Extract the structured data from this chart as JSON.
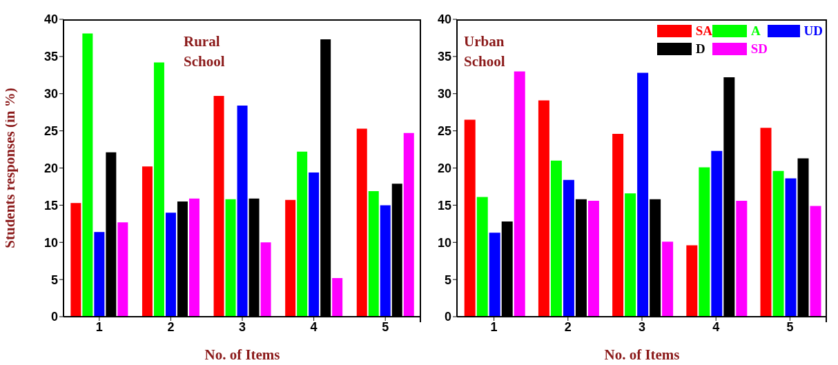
{
  "chart_data": [
    {
      "type": "bar",
      "categories": [
        "1",
        "2",
        "3",
        "4",
        "5"
      ],
      "ylim": [
        0,
        40
      ],
      "yticks": [
        0,
        5,
        10,
        15,
        20,
        25,
        30,
        35,
        40
      ],
      "xlabel": "No. of Items",
      "ylabel": "Students responses (in %)",
      "annotations": [
        "Rural School"
      ],
      "grid": false,
      "legend": false,
      "series": [
        {
          "color": "#ff0000",
          "values": [
            15.3,
            20.2,
            29.7,
            15.7,
            25.3
          ]
        },
        {
          "color": "#00ff00",
          "values": [
            38.1,
            34.2,
            15.8,
            22.2,
            16.9
          ]
        },
        {
          "color": "#0000ff",
          "values": [
            11.4,
            14.0,
            28.4,
            19.4,
            15.0
          ]
        },
        {
          "color": "#000000",
          "values": [
            22.1,
            15.5,
            15.9,
            37.3,
            17.9
          ]
        },
        {
          "color": "#ff00ff",
          "values": [
            12.7,
            15.9,
            10.0,
            5.2,
            24.7
          ]
        }
      ]
    },
    {
      "type": "bar",
      "categories": [
        "1",
        "2",
        "3",
        "4",
        "5"
      ],
      "ylim": [
        0,
        40
      ],
      "yticks": [
        0,
        5,
        10,
        15,
        20,
        25,
        30,
        35,
        40
      ],
      "xlabel": "No. of Items",
      "annotations": [
        "Urban School"
      ],
      "grid": false,
      "legend": "top right",
      "series": [
        {
          "name": "SA",
          "color": "#ff0000",
          "values": [
            26.5,
            29.1,
            24.6,
            9.6,
            25.4
          ]
        },
        {
          "name": "A",
          "color": "#00ff00",
          "values": [
            16.1,
            21.0,
            16.6,
            20.1,
            19.6
          ]
        },
        {
          "name": "UD",
          "color": "#0000ff",
          "values": [
            11.3,
            18.4,
            32.8,
            22.3,
            18.6
          ]
        },
        {
          "name": "D",
          "color": "#000000",
          "values": [
            12.8,
            15.8,
            15.8,
            32.2,
            21.3
          ]
        },
        {
          "name": "SD",
          "color": "#ff00ff",
          "values": [
            33.0,
            15.6,
            10.1,
            15.6,
            14.9
          ]
        }
      ]
    }
  ]
}
